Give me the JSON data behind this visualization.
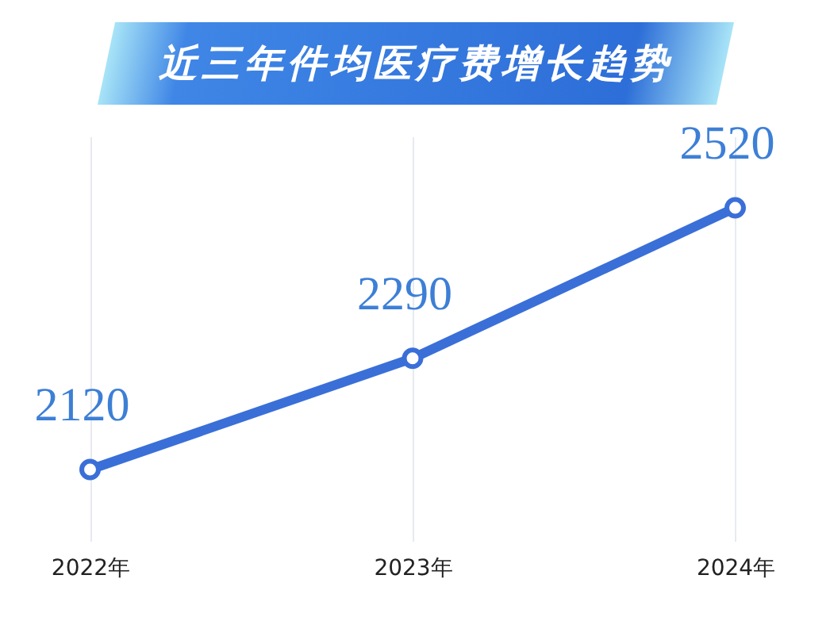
{
  "chart_data": {
    "type": "line",
    "title": "近三年件均医疗费增长趋势",
    "categories": [
      "2022年",
      "2023年",
      "2024年"
    ],
    "series": [
      {
        "color": "#3a6fd8",
        "values": [
          2120,
          2290,
          2520
        ]
      }
    ],
    "marker": "circle",
    "grid": "x",
    "data_labels": true
  }
}
